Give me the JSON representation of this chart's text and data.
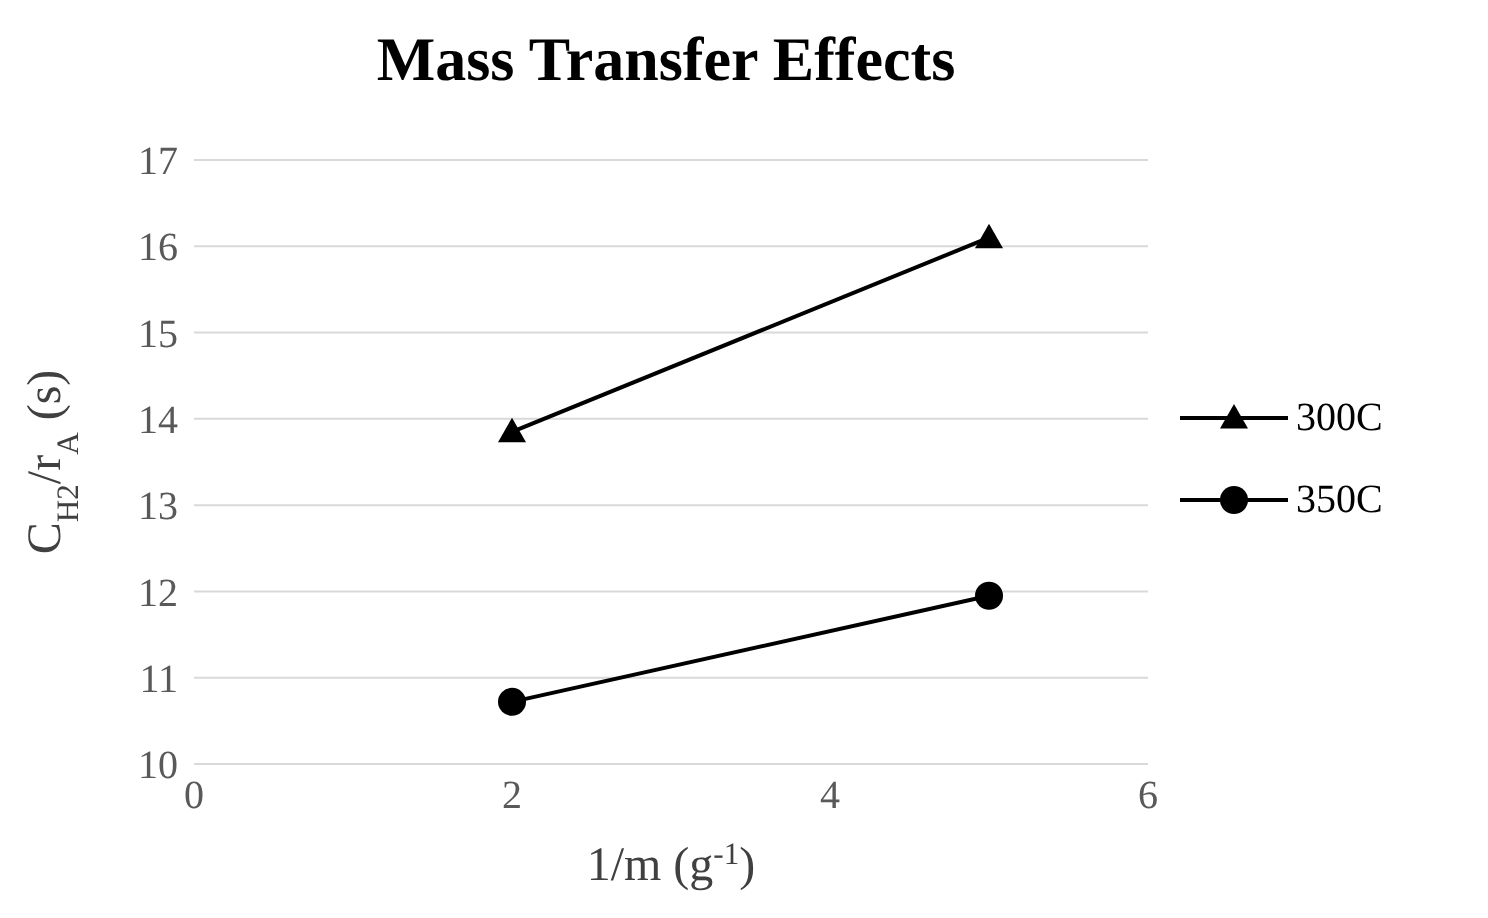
{
  "chart_data": {
    "type": "line",
    "title": "Mass Transfer Effects",
    "xlabel": "1/m (g$^{-1}$)",
    "ylabel": "C$_{H2}$/r$_{A}$ (s)",
    "x": [
      2,
      5
    ],
    "series": [
      {
        "name": "300C",
        "color": "#000000",
        "marker": "triangle",
        "values": [
          13.85,
          16.1
        ]
      },
      {
        "name": "350C",
        "color": "#000000",
        "marker": "circle",
        "values": [
          10.72,
          11.95
        ]
      }
    ],
    "xlim": [
      0,
      6
    ],
    "xticks": [
      0,
      2,
      4,
      6
    ],
    "ylim": [
      10,
      17
    ],
    "yticks": [
      10,
      11,
      12,
      13,
      14,
      15,
      16,
      17
    ],
    "grid": "y",
    "legend": "right",
    "line_style": "solid"
  }
}
